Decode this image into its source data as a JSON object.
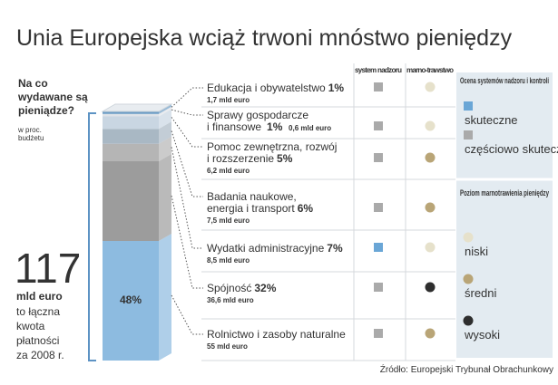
{
  "chart_data": {
    "type": "stacked-column",
    "title": "Unia Europejska wciąż trwoni mnóstwo pieniędzy",
    "question_lines": [
      "Na co",
      "wydawane są",
      "pieniądze?"
    ],
    "unit_lines": [
      "w proc.",
      "budżetu"
    ],
    "total": {
      "value": "117",
      "unit": "mld euro",
      "note_lines": [
        "to łączna",
        "kwota",
        "płatności",
        "za 2008 r."
      ]
    },
    "categories": [
      [
        "Edukacja i obywatelstwo"
      ],
      [
        "Sprawy gospodarcze",
        "i finansowe"
      ],
      [
        "Pomoc zewnętrzna, rozwój",
        "i rozszerzenie"
      ],
      [
        "Badania naukowe,",
        "energia i transport"
      ],
      [
        "Wydatki administracyjne"
      ],
      [
        "Spójność"
      ],
      [
        "Rolnictwo i zasoby naturalne"
      ]
    ],
    "values": [
      1,
      1,
      5,
      6,
      7,
      32,
      48
    ],
    "value_labels": [
      "1%",
      "1%",
      "5%",
      "6%",
      "7%",
      "32%",
      "48%"
    ],
    "amounts": [
      "1,7 mld euro",
      "0,6 mld euro",
      "6,2 mld euro",
      "7,5 mld euro",
      "8,5 mld euro",
      "36,6 mld euro",
      "55 mld euro"
    ],
    "colors": [
      "#6c9cc4",
      "#dfe3e8",
      "#c9d6e2",
      "#a9b8c4",
      "#b5b5b5",
      "#9c9c9c",
      "#8dbbe0"
    ],
    "columns": [
      "system nadzoru",
      "marno-trawstwo"
    ],
    "system": [
      1,
      1,
      1,
      1,
      0,
      1,
      1
    ],
    "waste": [
      0,
      0,
      1,
      1,
      0,
      2,
      1
    ],
    "legend_system": {
      "title": "Ocena systemów nadzoru i kontroli",
      "items": [
        {
          "label": "skuteczne",
          "color": "#6aa6d6"
        },
        {
          "label": "częściowo skuteczne",
          "color": "#aaaaaa"
        }
      ]
    },
    "legend_waste": {
      "title": "Poziom marnotrawienia pieniędzy",
      "items": [
        {
          "label": "niski",
          "color": "#e6e1cb"
        },
        {
          "label": "średni",
          "color": "#b9a577"
        },
        {
          "label": "wysoki",
          "color": "#2e2e2e"
        }
      ]
    },
    "source": "Źródło: Europejski Trybunał Obrachunkowy"
  }
}
